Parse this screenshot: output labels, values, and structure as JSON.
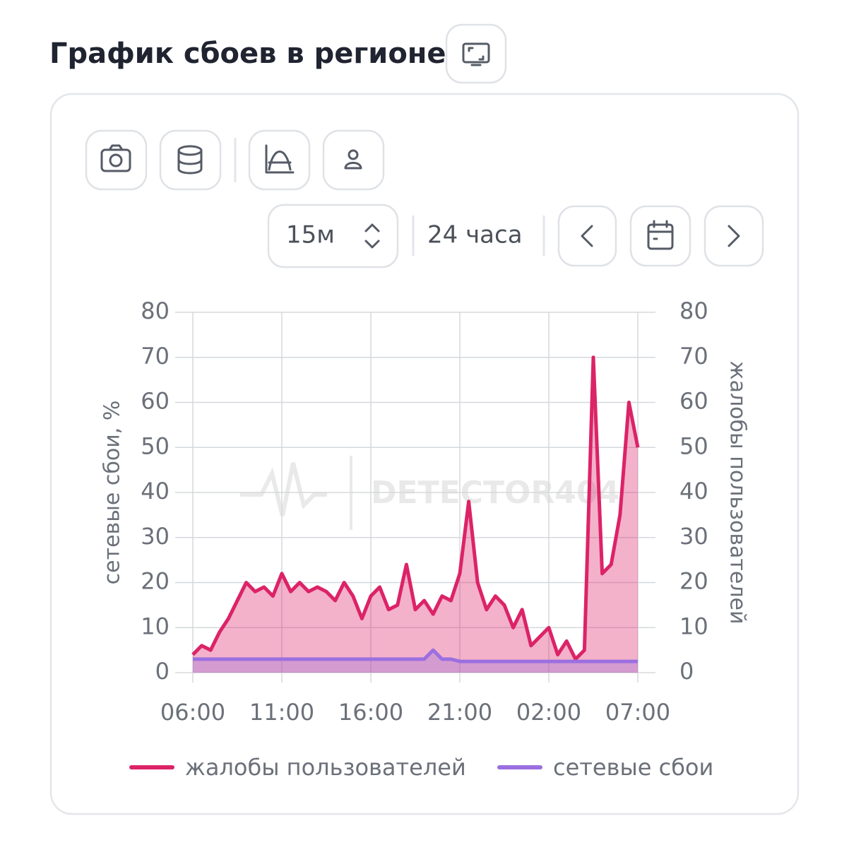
{
  "header": {
    "title": "График сбоев в регионе"
  },
  "controls": {
    "interval": "15м",
    "range": "24 часа"
  },
  "watermark": "DETECTOR404",
  "chart_data": {
    "type": "line",
    "ylabel": "сетевые сбои, %",
    "y2label": "жалобы пользователей",
    "x": [
      0,
      0.5,
      1,
      1.5,
      2,
      2.5,
      3,
      3.5,
      4,
      4.5,
      5,
      5.5,
      6,
      6.5,
      7,
      7.5,
      8,
      8.5,
      9,
      9.5,
      10,
      10.5,
      11,
      11.5,
      12,
      12.5,
      13,
      13.5,
      14,
      14.5,
      15,
      15.5,
      16,
      16.5,
      17,
      17.5,
      18,
      18.5,
      19,
      19.5,
      20,
      20.5,
      21,
      21.5,
      22,
      22.5,
      23,
      23.5,
      24,
      24.5,
      25
    ],
    "xlim": [
      0,
      25
    ],
    "xticks": [
      {
        "value": 0,
        "label": "06:00"
      },
      {
        "value": 5,
        "label": "11:00"
      },
      {
        "value": 10,
        "label": "16:00"
      },
      {
        "value": 15,
        "label": "21:00"
      },
      {
        "value": 20,
        "label": "02:00"
      },
      {
        "value": 25,
        "label": "07:00"
      }
    ],
    "ylim": [
      0,
      80
    ],
    "yticks": [
      0,
      10,
      20,
      30,
      40,
      50,
      60,
      70,
      80
    ],
    "y2lim": [
      0,
      80
    ],
    "y2ticks": [
      0,
      10,
      20,
      30,
      40,
      50,
      60,
      70,
      80
    ],
    "grid": true,
    "series": [
      {
        "name": "жалобы пользователей",
        "color": "#dc2367",
        "axis": "y2",
        "values": [
          4,
          6,
          5,
          9,
          12,
          16,
          20,
          18,
          19,
          17,
          22,
          18,
          20,
          18,
          19,
          18,
          16,
          20,
          17,
          12,
          17,
          19,
          14,
          15,
          24,
          14,
          16,
          13,
          17,
          16,
          22,
          38,
          20,
          14,
          17,
          15,
          10,
          14,
          6,
          8,
          10,
          4,
          7,
          3,
          5,
          70,
          22,
          24,
          35,
          60,
          50
        ]
      },
      {
        "name": "сетевые сбои",
        "color": "#9b6fe0",
        "values": [
          3,
          3,
          3,
          3,
          3,
          3,
          3,
          3,
          3,
          3,
          3,
          3,
          3,
          3,
          3,
          3,
          3,
          3,
          3,
          3,
          3,
          3,
          3,
          3,
          3,
          3,
          3,
          5,
          3,
          3,
          2.5,
          2.5,
          2.5,
          2.5,
          2.5,
          2.5,
          2.5,
          2.5,
          2.5,
          2.5,
          2.5,
          2.5,
          2.5,
          2.5,
          2.5,
          2.5,
          2.5,
          2.5,
          2.5,
          2.5,
          2.5
        ]
      }
    ]
  }
}
